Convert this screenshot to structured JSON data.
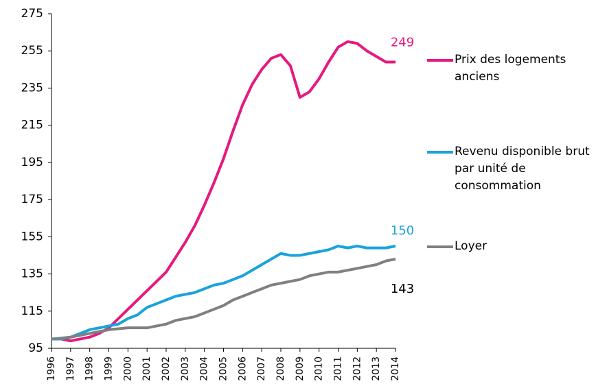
{
  "chart_data": {
    "type": "line",
    "x": [
      1996,
      1996.5,
      1997,
      1997.5,
      1998,
      1998.5,
      1999,
      1999.5,
      2000,
      2000.5,
      2001,
      2001.5,
      2002,
      2002.5,
      2003,
      2003.5,
      2004,
      2004.5,
      2005,
      2005.5,
      2006,
      2006.5,
      2007,
      2007.5,
      2008,
      2008.5,
      2009,
      2009.5,
      2010,
      2010.5,
      2011,
      2011.5,
      2012,
      2012.5,
      2013,
      2013.5,
      2014
    ],
    "series": [
      {
        "name": "Prix des logements anciens",
        "color": "#e5197f",
        "values": [
          100,
          100,
          99,
          100,
          101,
          103,
          106,
          111,
          116,
          121,
          126,
          131,
          136,
          144,
          152,
          161,
          172,
          184,
          197,
          212,
          226,
          237,
          245,
          251,
          253,
          247,
          230,
          233,
          240,
          249,
          257,
          260,
          259,
          255,
          252,
          249,
          249
        ]
      },
      {
        "name": "Revenu disponible brut par unité de consommation",
        "color": "#1aa3dc",
        "values": [
          100,
          100,
          101,
          103,
          105,
          106,
          107,
          108,
          111,
          113,
          117,
          119,
          121,
          123,
          124,
          125,
          127,
          129,
          130,
          132,
          134,
          137,
          140,
          143,
          146,
          145,
          145,
          146,
          147,
          148,
          150,
          149,
          150,
          149,
          149,
          149,
          150
        ]
      },
      {
        "name": "Loyer",
        "color": "#808080",
        "values": [
          100,
          100.5,
          101,
          102,
          103,
          104,
          105,
          105.5,
          106,
          106,
          106,
          107,
          108,
          110,
          111,
          112,
          114,
          116,
          118,
          121,
          123,
          125,
          127,
          129,
          130,
          131,
          132,
          134,
          135,
          136,
          136,
          137,
          138,
          139,
          140,
          142,
          143
        ]
      }
    ],
    "xlim": [
      1996,
      2014
    ],
    "xticks": [
      1996,
      1997,
      1998,
      1999,
      2000,
      2001,
      2002,
      2003,
      2004,
      2005,
      2006,
      2007,
      2008,
      2009,
      2010,
      2011,
      2012,
      2013,
      2014
    ],
    "ylim": [
      95,
      275
    ],
    "yticks": [
      95,
      115,
      135,
      155,
      175,
      195,
      215,
      235,
      255,
      275
    ],
    "grid": false,
    "legend": "right"
  }
}
